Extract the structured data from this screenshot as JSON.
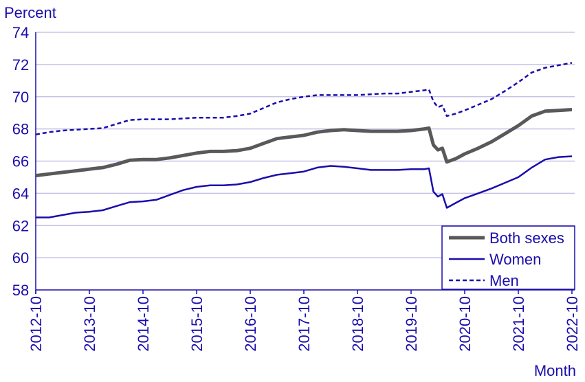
{
  "chart_data": {
    "type": "line",
    "ylabel": "Percent",
    "xlabel": "Month",
    "ylim": [
      58,
      74
    ],
    "yticks": [
      58,
      60,
      62,
      64,
      66,
      68,
      70,
      72,
      74
    ],
    "xlim": [
      "2012-10",
      "2022-10"
    ],
    "xticks": [
      "2012-10",
      "2013-10",
      "2014-10",
      "2015-10",
      "2016-10",
      "2017-10",
      "2018-10",
      "2019-10",
      "2020-10",
      "2021-10",
      "2022-10"
    ],
    "grid": "horizontal",
    "legend_position": "bottom-right",
    "colors": {
      "axis_text": "#1a0dab",
      "grid": "#c8c3e6",
      "both": "#595959",
      "women": "#1a0dab",
      "men": "#1a0dab"
    },
    "series": [
      {
        "name": "Both sexes",
        "color": "#595959",
        "style": "solid-thick",
        "points": [
          [
            "2012-10",
            65.1
          ],
          [
            "2013-01",
            65.2
          ],
          [
            "2013-04",
            65.3
          ],
          [
            "2013-07",
            65.4
          ],
          [
            "2013-10",
            65.5
          ],
          [
            "2014-01",
            65.6
          ],
          [
            "2014-04",
            65.8
          ],
          [
            "2014-07",
            66.05
          ],
          [
            "2014-10",
            66.1
          ],
          [
            "2015-01",
            66.1
          ],
          [
            "2015-04",
            66.2
          ],
          [
            "2015-07",
            66.35
          ],
          [
            "2015-10",
            66.5
          ],
          [
            "2016-01",
            66.6
          ],
          [
            "2016-04",
            66.6
          ],
          [
            "2016-07",
            66.65
          ],
          [
            "2016-10",
            66.8
          ],
          [
            "2017-01",
            67.1
          ],
          [
            "2017-04",
            67.4
          ],
          [
            "2017-07",
            67.5
          ],
          [
            "2017-10",
            67.6
          ],
          [
            "2018-01",
            67.8
          ],
          [
            "2018-04",
            67.9
          ],
          [
            "2018-07",
            67.95
          ],
          [
            "2018-10",
            67.9
          ],
          [
            "2019-01",
            67.85
          ],
          [
            "2019-04",
            67.85
          ],
          [
            "2019-07",
            67.85
          ],
          [
            "2019-10",
            67.9
          ],
          [
            "2020-01",
            68.0
          ],
          [
            "2020-02",
            68.05
          ],
          [
            "2020-03",
            67.0
          ],
          [
            "2020-04",
            66.7
          ],
          [
            "2020-05",
            66.8
          ],
          [
            "2020-06",
            65.95
          ],
          [
            "2020-08",
            66.15
          ],
          [
            "2020-10",
            66.45
          ],
          [
            "2021-01",
            66.8
          ],
          [
            "2021-04",
            67.2
          ],
          [
            "2021-07",
            67.7
          ],
          [
            "2021-10",
            68.2
          ],
          [
            "2022-01",
            68.8
          ],
          [
            "2022-04",
            69.1
          ],
          [
            "2022-07",
            69.15
          ],
          [
            "2022-10",
            69.2
          ]
        ]
      },
      {
        "name": "Women",
        "color": "#1a0dab",
        "style": "solid",
        "points": [
          [
            "2012-10",
            62.5
          ],
          [
            "2013-01",
            62.5
          ],
          [
            "2013-04",
            62.65
          ],
          [
            "2013-07",
            62.8
          ],
          [
            "2013-10",
            62.85
          ],
          [
            "2014-01",
            62.95
          ],
          [
            "2014-04",
            63.2
          ],
          [
            "2014-07",
            63.45
          ],
          [
            "2014-10",
            63.5
          ],
          [
            "2015-01",
            63.6
          ],
          [
            "2015-04",
            63.9
          ],
          [
            "2015-07",
            64.2
          ],
          [
            "2015-10",
            64.4
          ],
          [
            "2016-01",
            64.5
          ],
          [
            "2016-04",
            64.5
          ],
          [
            "2016-07",
            64.55
          ],
          [
            "2016-10",
            64.7
          ],
          [
            "2017-01",
            64.95
          ],
          [
            "2017-04",
            65.15
          ],
          [
            "2017-07",
            65.25
          ],
          [
            "2017-10",
            65.35
          ],
          [
            "2018-01",
            65.6
          ],
          [
            "2018-04",
            65.7
          ],
          [
            "2018-07",
            65.65
          ],
          [
            "2018-10",
            65.55
          ],
          [
            "2019-01",
            65.45
          ],
          [
            "2019-04",
            65.45
          ],
          [
            "2019-07",
            65.45
          ],
          [
            "2019-10",
            65.5
          ],
          [
            "2020-01",
            65.5
          ],
          [
            "2020-02",
            65.55
          ],
          [
            "2020-03",
            64.1
          ],
          [
            "2020-04",
            63.8
          ],
          [
            "2020-05",
            63.95
          ],
          [
            "2020-06",
            63.1
          ],
          [
            "2020-08",
            63.4
          ],
          [
            "2020-10",
            63.7
          ],
          [
            "2021-01",
            64.0
          ],
          [
            "2021-04",
            64.3
          ],
          [
            "2021-07",
            64.65
          ],
          [
            "2021-10",
            65.0
          ],
          [
            "2022-01",
            65.6
          ],
          [
            "2022-04",
            66.1
          ],
          [
            "2022-07",
            66.25
          ],
          [
            "2022-10",
            66.3
          ]
        ]
      },
      {
        "name": "Men",
        "color": "#1a0dab",
        "style": "dashed",
        "points": [
          [
            "2012-10",
            67.65
          ],
          [
            "2013-01",
            67.8
          ],
          [
            "2013-04",
            67.9
          ],
          [
            "2013-07",
            67.95
          ],
          [
            "2013-10",
            68.0
          ],
          [
            "2014-01",
            68.05
          ],
          [
            "2014-04",
            68.3
          ],
          [
            "2014-07",
            68.55
          ],
          [
            "2014-10",
            68.6
          ],
          [
            "2015-01",
            68.6
          ],
          [
            "2015-04",
            68.6
          ],
          [
            "2015-07",
            68.65
          ],
          [
            "2015-10",
            68.7
          ],
          [
            "2016-01",
            68.7
          ],
          [
            "2016-04",
            68.7
          ],
          [
            "2016-07",
            68.8
          ],
          [
            "2016-10",
            68.95
          ],
          [
            "2017-01",
            69.3
          ],
          [
            "2017-04",
            69.65
          ],
          [
            "2017-07",
            69.85
          ],
          [
            "2017-10",
            70.0
          ],
          [
            "2018-01",
            70.1
          ],
          [
            "2018-04",
            70.1
          ],
          [
            "2018-07",
            70.1
          ],
          [
            "2018-10",
            70.1
          ],
          [
            "2019-01",
            70.15
          ],
          [
            "2019-04",
            70.2
          ],
          [
            "2019-07",
            70.2
          ],
          [
            "2019-10",
            70.3
          ],
          [
            "2020-01",
            70.4
          ],
          [
            "2020-02",
            70.45
          ],
          [
            "2020-03",
            69.7
          ],
          [
            "2020-04",
            69.35
          ],
          [
            "2020-05",
            69.45
          ],
          [
            "2020-06",
            68.8
          ],
          [
            "2020-08",
            68.95
          ],
          [
            "2020-10",
            69.15
          ],
          [
            "2021-01",
            69.5
          ],
          [
            "2021-04",
            69.85
          ],
          [
            "2021-07",
            70.35
          ],
          [
            "2021-10",
            70.9
          ],
          [
            "2022-01",
            71.5
          ],
          [
            "2022-04",
            71.8
          ],
          [
            "2022-07",
            71.95
          ],
          [
            "2022-10",
            72.1
          ]
        ]
      }
    ]
  }
}
